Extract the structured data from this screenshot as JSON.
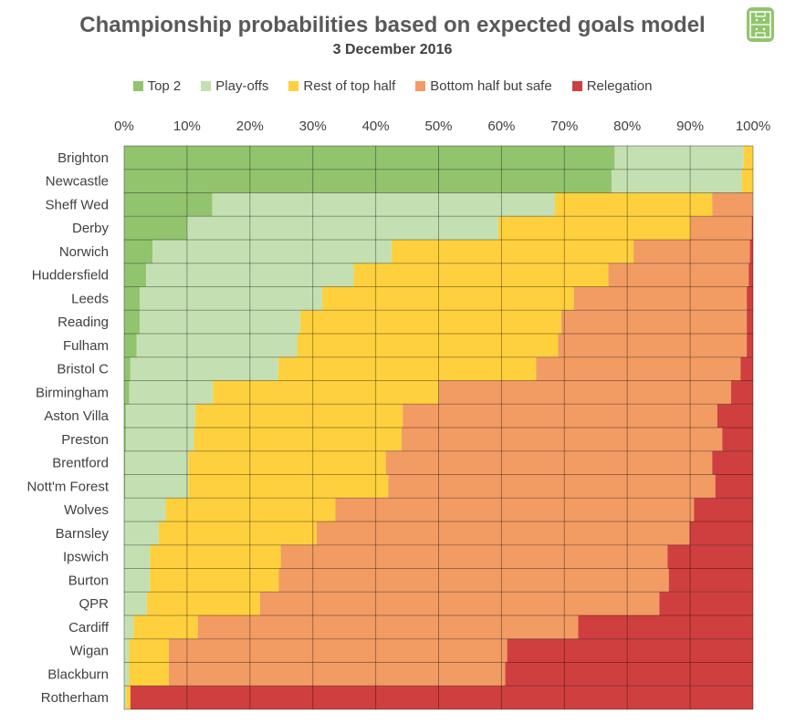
{
  "chart_data": {
    "type": "bar",
    "orientation": "horizontal",
    "stacked": true,
    "title": "Championship probabilities based on expected goals model",
    "subtitle": "3 December 2016",
    "x_ticks": [
      "0%",
      "10%",
      "20%",
      "30%",
      "40%",
      "50%",
      "60%",
      "70%",
      "80%",
      "90%",
      "100%"
    ],
    "xlim": [
      0,
      100
    ],
    "legend_position": "top",
    "grid": true,
    "categories": [
      "Brighton",
      "Newcastle",
      "Sheff Wed",
      "Derby",
      "Norwich",
      "Huddersfield",
      "Leeds",
      "Reading",
      "Fulham",
      "Bristol C",
      "Birmingham",
      "Aston Villa",
      "Preston",
      "Brentford",
      "Nott'm Forest",
      "Wolves",
      "Barnsley",
      "Ipswich",
      "Burton",
      "QPR",
      "Cardiff",
      "Wigan",
      "Blackburn",
      "Rotherham"
    ],
    "series": [
      {
        "name": "Top 2",
        "color": "#92c46e",
        "values": [
          78,
          77.5,
          14,
          10,
          4.5,
          3.5,
          2.5,
          2.5,
          2,
          1,
          0.8,
          0.3,
          0.3,
          0.2,
          0.2,
          0.1,
          0.1,
          0.1,
          0.1,
          0.1,
          0,
          0,
          0,
          0
        ]
      },
      {
        "name": "Play-offs",
        "color": "#c4e0b2",
        "values": [
          20.5,
          20.7,
          54.5,
          49.5,
          38,
          33,
          29,
          25.5,
          25.5,
          23.5,
          13.3,
          11,
          10.8,
          10,
          10,
          6.5,
          5.4,
          4,
          4,
          3.5,
          1.5,
          0.8,
          0.8,
          0.3
        ]
      },
      {
        "name": "Rest of top half",
        "color": "#ffd03d",
        "values": [
          1.5,
          1.8,
          25,
          30.5,
          38.5,
          40.5,
          40,
          41.5,
          41.5,
          41,
          35.9,
          33,
          33,
          31.4,
          31.8,
          27,
          25.1,
          20.8,
          20.5,
          18,
          10.2,
          6.3,
          6.3,
          0.7
        ]
      },
      {
        "name": "Bottom half but safe",
        "color": "#f29b63",
        "values": [
          0,
          0,
          6.5,
          9.8,
          18.5,
          22.3,
          27.5,
          29.5,
          30,
          32.5,
          46.5,
          50,
          51,
          51.9,
          52,
          57,
          59.3,
          61.5,
          62,
          63.5,
          60.5,
          53.8,
          53.5,
          0
        ]
      },
      {
        "name": "Relegation",
        "color": "#d03f3f",
        "values": [
          0,
          0,
          0,
          0.2,
          0.5,
          0.7,
          1,
          1,
          1,
          2,
          3.5,
          5.7,
          4.9,
          6.5,
          6,
          9.4,
          10.1,
          13.6,
          13.4,
          14.9,
          27.8,
          39.1,
          39.4,
          99
        ]
      }
    ]
  },
  "logo_icon": "pitch-icon"
}
